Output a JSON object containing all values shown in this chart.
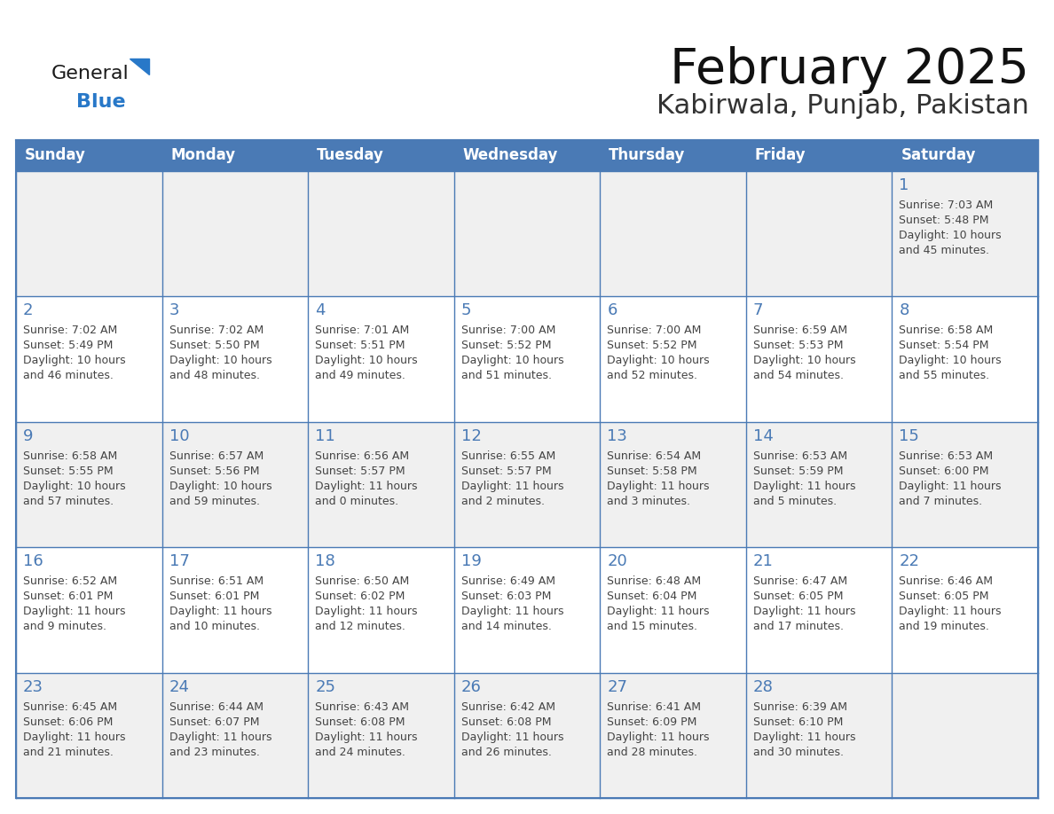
{
  "title": "February 2025",
  "subtitle": "Kabirwala, Punjab, Pakistan",
  "header_color": "#4a7ab5",
  "header_text_color": "#ffffff",
  "border_color": "#4a7ab5",
  "day_number_color": "#4a7ab5",
  "text_color": "#444444",
  "day_headers": [
    "Sunday",
    "Monday",
    "Tuesday",
    "Wednesday",
    "Thursday",
    "Friday",
    "Saturday"
  ],
  "row_bg_colors": [
    "#f0f0f0",
    "#ffffff",
    "#f0f0f0",
    "#ffffff",
    "#f0f0f0"
  ],
  "weeks": [
    [
      {
        "day": "",
        "info": ""
      },
      {
        "day": "",
        "info": ""
      },
      {
        "day": "",
        "info": ""
      },
      {
        "day": "",
        "info": ""
      },
      {
        "day": "",
        "info": ""
      },
      {
        "day": "",
        "info": ""
      },
      {
        "day": "1",
        "info": "Sunrise: 7:03 AM\nSunset: 5:48 PM\nDaylight: 10 hours\nand 45 minutes."
      }
    ],
    [
      {
        "day": "2",
        "info": "Sunrise: 7:02 AM\nSunset: 5:49 PM\nDaylight: 10 hours\nand 46 minutes."
      },
      {
        "day": "3",
        "info": "Sunrise: 7:02 AM\nSunset: 5:50 PM\nDaylight: 10 hours\nand 48 minutes."
      },
      {
        "day": "4",
        "info": "Sunrise: 7:01 AM\nSunset: 5:51 PM\nDaylight: 10 hours\nand 49 minutes."
      },
      {
        "day": "5",
        "info": "Sunrise: 7:00 AM\nSunset: 5:52 PM\nDaylight: 10 hours\nand 51 minutes."
      },
      {
        "day": "6",
        "info": "Sunrise: 7:00 AM\nSunset: 5:52 PM\nDaylight: 10 hours\nand 52 minutes."
      },
      {
        "day": "7",
        "info": "Sunrise: 6:59 AM\nSunset: 5:53 PM\nDaylight: 10 hours\nand 54 minutes."
      },
      {
        "day": "8",
        "info": "Sunrise: 6:58 AM\nSunset: 5:54 PM\nDaylight: 10 hours\nand 55 minutes."
      }
    ],
    [
      {
        "day": "9",
        "info": "Sunrise: 6:58 AM\nSunset: 5:55 PM\nDaylight: 10 hours\nand 57 minutes."
      },
      {
        "day": "10",
        "info": "Sunrise: 6:57 AM\nSunset: 5:56 PM\nDaylight: 10 hours\nand 59 minutes."
      },
      {
        "day": "11",
        "info": "Sunrise: 6:56 AM\nSunset: 5:57 PM\nDaylight: 11 hours\nand 0 minutes."
      },
      {
        "day": "12",
        "info": "Sunrise: 6:55 AM\nSunset: 5:57 PM\nDaylight: 11 hours\nand 2 minutes."
      },
      {
        "day": "13",
        "info": "Sunrise: 6:54 AM\nSunset: 5:58 PM\nDaylight: 11 hours\nand 3 minutes."
      },
      {
        "day": "14",
        "info": "Sunrise: 6:53 AM\nSunset: 5:59 PM\nDaylight: 11 hours\nand 5 minutes."
      },
      {
        "day": "15",
        "info": "Sunrise: 6:53 AM\nSunset: 6:00 PM\nDaylight: 11 hours\nand 7 minutes."
      }
    ],
    [
      {
        "day": "16",
        "info": "Sunrise: 6:52 AM\nSunset: 6:01 PM\nDaylight: 11 hours\nand 9 minutes."
      },
      {
        "day": "17",
        "info": "Sunrise: 6:51 AM\nSunset: 6:01 PM\nDaylight: 11 hours\nand 10 minutes."
      },
      {
        "day": "18",
        "info": "Sunrise: 6:50 AM\nSunset: 6:02 PM\nDaylight: 11 hours\nand 12 minutes."
      },
      {
        "day": "19",
        "info": "Sunrise: 6:49 AM\nSunset: 6:03 PM\nDaylight: 11 hours\nand 14 minutes."
      },
      {
        "day": "20",
        "info": "Sunrise: 6:48 AM\nSunset: 6:04 PM\nDaylight: 11 hours\nand 15 minutes."
      },
      {
        "day": "21",
        "info": "Sunrise: 6:47 AM\nSunset: 6:05 PM\nDaylight: 11 hours\nand 17 minutes."
      },
      {
        "day": "22",
        "info": "Sunrise: 6:46 AM\nSunset: 6:05 PM\nDaylight: 11 hours\nand 19 minutes."
      }
    ],
    [
      {
        "day": "23",
        "info": "Sunrise: 6:45 AM\nSunset: 6:06 PM\nDaylight: 11 hours\nand 21 minutes."
      },
      {
        "day": "24",
        "info": "Sunrise: 6:44 AM\nSunset: 6:07 PM\nDaylight: 11 hours\nand 23 minutes."
      },
      {
        "day": "25",
        "info": "Sunrise: 6:43 AM\nSunset: 6:08 PM\nDaylight: 11 hours\nand 24 minutes."
      },
      {
        "day": "26",
        "info": "Sunrise: 6:42 AM\nSunset: 6:08 PM\nDaylight: 11 hours\nand 26 minutes."
      },
      {
        "day": "27",
        "info": "Sunrise: 6:41 AM\nSunset: 6:09 PM\nDaylight: 11 hours\nand 28 minutes."
      },
      {
        "day": "28",
        "info": "Sunrise: 6:39 AM\nSunset: 6:10 PM\nDaylight: 11 hours\nand 30 minutes."
      },
      {
        "day": "",
        "info": ""
      }
    ]
  ],
  "logo_text_general": "General",
  "logo_text_blue": "Blue",
  "logo_color_general": "#1a1a1a",
  "logo_color_blue": "#2878c8",
  "logo_triangle_color": "#2878c8",
  "title_fontsize": 40,
  "subtitle_fontsize": 22,
  "header_fontsize": 12,
  "day_num_fontsize": 13,
  "info_fontsize": 9
}
